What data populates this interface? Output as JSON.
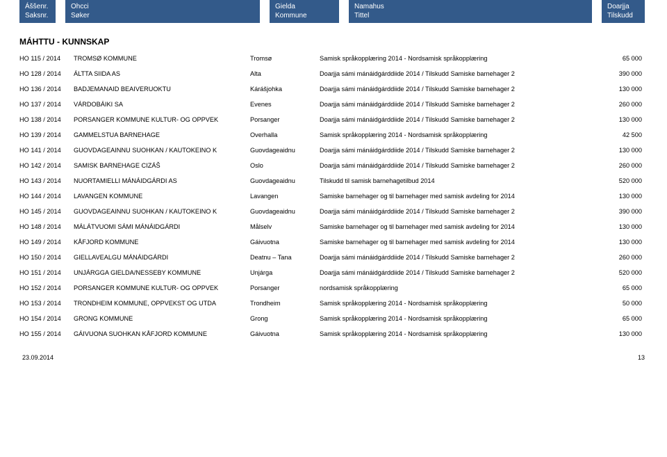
{
  "header": {
    "c1a": "Áššenr.",
    "c1b": "Saksnr.",
    "c2a": "Ohcci",
    "c2b": "Søker",
    "c3a": "Gielda",
    "c3b": "Kommune",
    "c4a": "Namahus",
    "c4b": "Tittel",
    "c5a": "Doarjja",
    "c5b": "Tilskudd"
  },
  "section_title": "MÁHTTU - KUNNSKAP",
  "rows": [
    {
      "sak": "HO   115  / 2014",
      "soker": "TROMSØ KOMMUNE",
      "komm": "Tromsø",
      "tittel": "Samisk språkopplæring 2014 -  Nordsamisk språkopplæring",
      "bel": "65 000"
    },
    {
      "sak": "HO   128  / 2014",
      "soker": "ÁLTTA SIIDA AS",
      "komm": "Alta",
      "tittel": "Doarjja sámi mánáidgárddiide 2014 / Tilskudd Samiske barnehager 2",
      "bel": "390 000"
    },
    {
      "sak": "HO   136  / 2014",
      "soker": "BADJEMANAID BEAIVERUOKTU",
      "komm": "Kárášjohka",
      "tittel": "Doarjja sámi mánáidgárddiide 2014 / Tilskudd Samiske barnehager 2",
      "bel": "130 000"
    },
    {
      "sak": "HO   137  / 2014",
      "soker": "VÁRDOBÁIKI SA",
      "komm": "Evenes",
      "tittel": "Doarjja sámi mánáidgárddiide 2014 / Tilskudd Samiske barnehager 2",
      "bel": "260 000"
    },
    {
      "sak": "HO   138  / 2014",
      "soker": "PORSANGER KOMMUNE KULTUR- OG OPPVEK",
      "komm": "Porsanger",
      "tittel": "Doarjja sámi mánáidgárddiide 2014 / Tilskudd Samiske barnehager 2",
      "bel": "130 000"
    },
    {
      "sak": "HO   139  / 2014",
      "soker": "GAMMELSTUA BARNEHAGE",
      "komm": "Overhalla",
      "tittel": "Samisk språkopplæring 2014 -  Nordsamisk språkopplæring",
      "bel": "42 500"
    },
    {
      "sak": "HO   141  / 2014",
      "soker": "GUOVDAGEAINNU SUOHKAN / KAUTOKEINO K",
      "komm": "Guovdageaidnu",
      "tittel": "Doarjja sámi mánáidgárddiide 2014 / Tilskudd Samiske barnehager 2",
      "bel": "130 000"
    },
    {
      "sak": "HO   142  / 2014",
      "soker": "SAMISK BARNEHAGE CIZÁŠ",
      "komm": "Oslo",
      "tittel": "Doarjja sámi mánáidgárddiide 2014 / Tilskudd Samiske barnehager 2",
      "bel": "260 000"
    },
    {
      "sak": "HO   143  / 2014",
      "soker": "NUORTAMIELLI MÁNÁIDGÁRDI AS",
      "komm": "Guovdageaidnu",
      "tittel": "Tilskudd til samisk barnehagetilbud 2014",
      "bel": "520 000"
    },
    {
      "sak": "HO   144  / 2014",
      "soker": "LAVANGEN KOMMUNE",
      "komm": "Lavangen",
      "tittel": "Samiske barnehager og til barnehager med samisk avdeling for 2014",
      "bel": "130 000"
    },
    {
      "sak": "HO   145  / 2014",
      "soker": "GUOVDAGEAINNU SUOHKAN / KAUTOKEINO K",
      "komm": "Guovdageaidnu",
      "tittel": "Doarjja sámi mánáidgárddiide 2014 / Tilskudd Samiske barnehager 2",
      "bel": "390 000"
    },
    {
      "sak": "HO   148  / 2014",
      "soker": "MÁLÁTVUOMI SÁMI MÁNÁIDGÁRDI",
      "komm": "Målselv",
      "tittel": "Samiske barnehager og til barnehager med samisk avdeling for 2014",
      "bel": "130 000"
    },
    {
      "sak": "HO   149  / 2014",
      "soker": "KÅFJORD KOMMUNE",
      "komm": "Gáivuotna",
      "tittel": "Samiske barnehager og til barnehager med samisk avdeling for 2014",
      "bel": "130 000"
    },
    {
      "sak": "HO   150  / 2014",
      "soker": "GIELLAVEALGU MÁNÁIDGÁRDI",
      "komm": "Deatnu – Tana",
      "tittel": "Doarjja sámi mánáidgárddiide 2014 / Tilskudd Samiske barnehager 2",
      "bel": "260 000"
    },
    {
      "sak": "HO   151  / 2014",
      "soker": "UNJÁRGGA GIELDA/NESSEBY KOMMUNE",
      "komm": "Unjárga",
      "tittel": "Doarjja sámi mánáidgárddiide 2014 / Tilskudd Samiske barnehager 2",
      "bel": "520 000"
    },
    {
      "sak": "HO   152  / 2014",
      "soker": "PORSANGER KOMMUNE KULTUR- OG OPPVEK",
      "komm": "Porsanger",
      "tittel": "nordsamisk språkopplæring",
      "bel": "65 000"
    },
    {
      "sak": "HO   153  / 2014",
      "soker": "TRONDHEIM KOMMUNE, OPPVEKST OG UTDA",
      "komm": "Trondheim",
      "tittel": "Samisk språkopplæring 2014 -  Nordsamisk språkopplæring",
      "bel": "50 000"
    },
    {
      "sak": "HO   154  / 2014",
      "soker": "GRONG KOMMUNE",
      "komm": "Grong",
      "tittel": "Samisk språkopplæring 2014 -  Nordsamisk språkopplæring",
      "bel": "65 000"
    },
    {
      "sak": "HO   155  / 2014",
      "soker": "GÁIVUONA SUOHKAN KÅFJORD KOMMUNE",
      "komm": "Gáivuotna",
      "tittel": "Samisk språkopplæring 2014 -  Nordsamisk språkopplæring",
      "bel": "130 000"
    }
  ],
  "footer": {
    "date": "23.09.2014",
    "page": "13"
  },
  "colors": {
    "header_bg": "#335a8a",
    "header_fg": "#ffffff",
    "page_bg": "#ffffff",
    "text": "#000000"
  }
}
